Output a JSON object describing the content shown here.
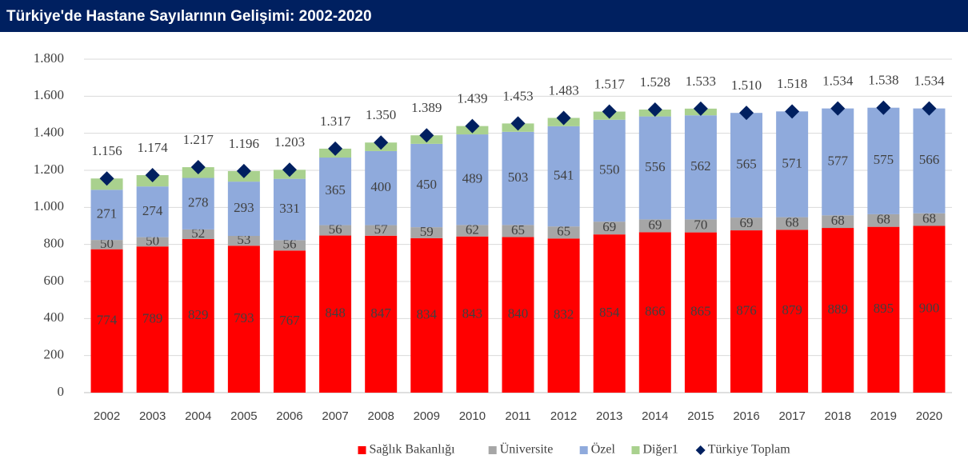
{
  "chart_data": {
    "type": "bar",
    "stacked": true,
    "title": "Türkiye'de Hastane Sayılarının Gelişimi: 2002-2020",
    "categories": [
      "2002",
      "2003",
      "2004",
      "2005",
      "2006",
      "2007",
      "2008",
      "2009",
      "2010",
      "2011",
      "2012",
      "2013",
      "2014",
      "2015",
      "2016",
      "2017",
      "2018",
      "2019",
      "2020"
    ],
    "series": [
      {
        "name": "Sağlık Bakanlığı",
        "color": "#ff0000",
        "values": [
          774,
          789,
          829,
          793,
          767,
          848,
          847,
          834,
          843,
          840,
          832,
          854,
          866,
          865,
          876,
          879,
          889,
          895,
          900
        ],
        "labels": true
      },
      {
        "name": "Üniversite",
        "color": "#a6a6a6",
        "values": [
          50,
          50,
          52,
          53,
          56,
          56,
          57,
          59,
          62,
          65,
          65,
          69,
          69,
          70,
          69,
          68,
          68,
          68,
          68
        ],
        "labels": true
      },
      {
        "name": "Özel",
        "color": "#8faadc",
        "values": [
          271,
          274,
          278,
          293,
          331,
          365,
          400,
          450,
          489,
          503,
          541,
          550,
          556,
          562,
          565,
          571,
          577,
          575,
          566
        ],
        "labels": true
      },
      {
        "name": "Diğer1",
        "color": "#a9d18e",
        "values": [
          61,
          61,
          58,
          57,
          49,
          48,
          46,
          46,
          45,
          45,
          45,
          44,
          37,
          36,
          0,
          0,
          0,
          0,
          0
        ],
        "labels": false
      },
      {
        "name": "Türkiye Toplam",
        "color": "#002060",
        "type": "scatter",
        "marker": "diamond",
        "values": [
          1156,
          1174,
          1217,
          1196,
          1203,
          1317,
          1350,
          1389,
          1439,
          1453,
          1483,
          1517,
          1528,
          1533,
          1510,
          1518,
          1534,
          1538,
          1534
        ],
        "value_labels": [
          "1.156",
          "1.174",
          "1.217",
          "1.196",
          "1.203",
          "1.317",
          "1.350",
          "1.389",
          "1.439",
          "1.453",
          "1.483",
          "1.517",
          "1.528",
          "1.533",
          "1.510",
          "1.518",
          "1.534",
          "1.538",
          "1.534"
        ]
      }
    ],
    "ylim": [
      0,
      1800
    ],
    "yticks": [
      0,
      200,
      400,
      600,
      800,
      {
        "value": 1000,
        "label": "1.000"
      },
      {
        "value": 1200,
        "label": "1.200"
      },
      {
        "value": 1400,
        "label": "1.400"
      },
      {
        "value": 1600,
        "label": "1.600"
      },
      {
        "value": 1800,
        "label": "1.800"
      }
    ],
    "grid": true,
    "legend": "bottom"
  }
}
